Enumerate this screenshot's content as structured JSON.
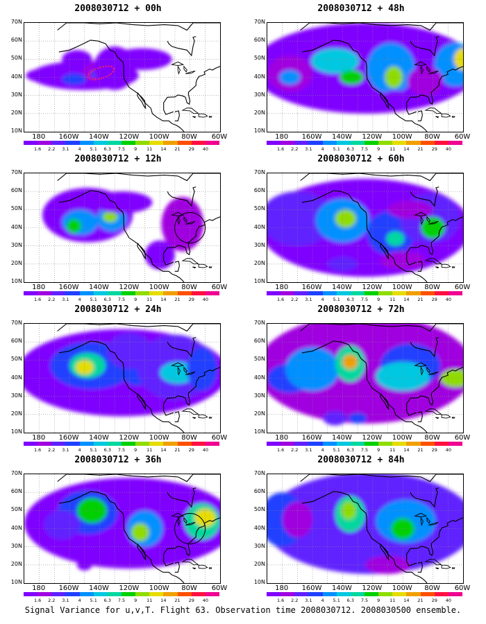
{
  "caption": "Signal Variance for u,v,T. Flight 63. Observation time 2008030712. 2008030500 ensemble.",
  "lat_labels": [
    "70N",
    "60N",
    "50N",
    "40N",
    "30N",
    "20N",
    "10N"
  ],
  "lon_labels": [
    "180",
    "160W",
    "140W",
    "120W",
    "100W",
    "80W",
    "60W"
  ],
  "colorbar": {
    "labels": [
      "1.6",
      "2.2",
      "3.1",
      "4",
      "5.1",
      "6.3",
      "7.5",
      "9",
      "11",
      "14",
      "21",
      "29",
      "40"
    ],
    "colors": [
      "#8000ff",
      "#a000e0",
      "#6020ff",
      "#2040ff",
      "#0090ff",
      "#00c8e0",
      "#00d8a0",
      "#00d000",
      "#90dc00",
      "#e6dc00",
      "#f0a000",
      "#ff5000",
      "#ff1040",
      "#f00090"
    ]
  },
  "panels": [
    {
      "title": "2008030712 + 00h"
    },
    {
      "title": "2008030712 + 48h"
    },
    {
      "title": "2008030712 + 12h"
    },
    {
      "title": "2008030712 + 60h"
    },
    {
      "title": "2008030712 + 24h"
    },
    {
      "title": "2008030712 + 72h"
    },
    {
      "title": "2008030712 + 36h"
    },
    {
      "title": "2008030712 + 84h"
    }
  ]
}
